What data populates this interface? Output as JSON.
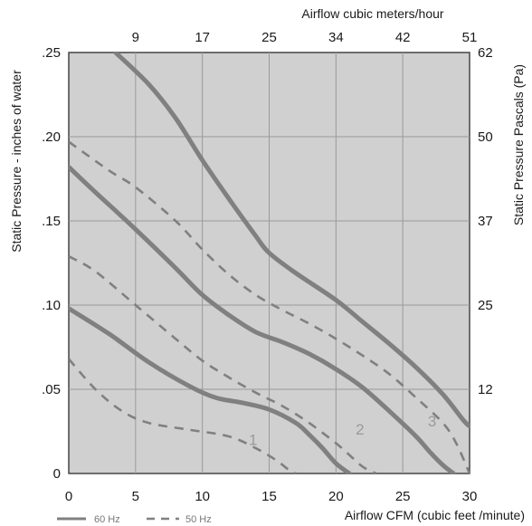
{
  "chart_data": {
    "type": "line",
    "x_bottom": {
      "label": "Airflow  CFM (cubic feet /minute)",
      "range": [
        0,
        30
      ],
      "ticks": [
        {
          "value": 0,
          "label": "0"
        },
        {
          "value": 5,
          "label": "5"
        },
        {
          "value": 10,
          "label": "10"
        },
        {
          "value": 15,
          "label": "15"
        },
        {
          "value": 20,
          "label": "20"
        },
        {
          "value": 25,
          "label": "25"
        },
        {
          "value": 30,
          "label": "30"
        }
      ]
    },
    "x_top": {
      "label": "Airflow cubic meters/hour",
      "ticks": [
        {
          "value": 5,
          "label": "9"
        },
        {
          "value": 10,
          "label": "17"
        },
        {
          "value": 15,
          "label": "25"
        },
        {
          "value": 20,
          "label": "34"
        },
        {
          "value": 25,
          "label": "42"
        },
        {
          "value": 30,
          "label": "51"
        }
      ]
    },
    "y_left": {
      "label": "Static Pressure - inches of water",
      "range": [
        0,
        0.25
      ],
      "ticks": [
        {
          "value": 0,
          "label": "0"
        },
        {
          "value": 0.05,
          "label": ".05"
        },
        {
          "value": 0.1,
          "label": ".10"
        },
        {
          "value": 0.15,
          "label": ".15"
        },
        {
          "value": 0.2,
          "label": ".20"
        },
        {
          "value": 0.25,
          "label": ".25"
        }
      ]
    },
    "y_right": {
      "label": "Static Pressure Pascals (Pa)",
      "ticks": [
        {
          "value": 0.05,
          "label": "12"
        },
        {
          "value": 0.1,
          "label": "25"
        },
        {
          "value": 0.15,
          "label": "37"
        },
        {
          "value": 0.2,
          "label": "50"
        },
        {
          "value": 0.25,
          "label": "62"
        }
      ]
    },
    "grid": true,
    "legend": {
      "placement": "bottom-left",
      "entries": [
        {
          "label": "60 Hz",
          "style": "solid"
        },
        {
          "label": "50 Hz",
          "style": "dashed"
        }
      ]
    },
    "colors": {
      "plot_background": "#d0d0d0",
      "curve": "#808080",
      "grid": "#9a9a9a"
    },
    "series": [
      {
        "curve": "1",
        "hz": "60",
        "style": "solid",
        "x": [
          0,
          3,
          6,
          9,
          11,
          13,
          15,
          17,
          18,
          19,
          20,
          21
        ],
        "y": [
          0.098,
          0.083,
          0.066,
          0.052,
          0.045,
          0.042,
          0.038,
          0.03,
          0.023,
          0.015,
          0.006,
          0
        ]
      },
      {
        "curve": "1",
        "hz": "50",
        "style": "dashed",
        "x": [
          0,
          2,
          4,
          6,
          9,
          12,
          14,
          15.5,
          16.5,
          17
        ],
        "y": [
          0.068,
          0.05,
          0.037,
          0.03,
          0.026,
          0.022,
          0.015,
          0.008,
          0.002,
          0
        ]
      },
      {
        "curve": "2",
        "hz": "60",
        "style": "solid",
        "x": [
          0,
          2,
          5,
          8,
          10,
          12,
          14,
          16,
          18,
          20,
          22,
          24,
          26,
          27,
          28,
          28.8
        ],
        "y": [
          0.182,
          0.167,
          0.145,
          0.122,
          0.106,
          0.094,
          0.084,
          0.078,
          0.071,
          0.062,
          0.051,
          0.037,
          0.022,
          0.013,
          0.005,
          0
        ]
      },
      {
        "curve": "2",
        "hz": "50",
        "style": "dashed",
        "x": [
          0,
          2,
          5,
          8,
          10,
          12,
          14,
          16,
          18,
          20,
          21,
          22,
          23
        ],
        "y": [
          0.129,
          0.12,
          0.1,
          0.08,
          0.067,
          0.057,
          0.048,
          0.04,
          0.03,
          0.018,
          0.011,
          0.004,
          0
        ]
      },
      {
        "curve": "3",
        "hz": "60",
        "style": "solid",
        "x": [
          3.5,
          6,
          8,
          10,
          12,
          14,
          15,
          17,
          20,
          22,
          24,
          26,
          28,
          29.5,
          30
        ],
        "y": [
          0.25,
          0.231,
          0.211,
          0.186,
          0.163,
          0.141,
          0.131,
          0.119,
          0.103,
          0.09,
          0.077,
          0.063,
          0.047,
          0.032,
          0.028
        ]
      },
      {
        "curve": "3",
        "hz": "50",
        "style": "dashed",
        "x": [
          0,
          3,
          5,
          8,
          10,
          12,
          14,
          16,
          18,
          20,
          22,
          24,
          26,
          28,
          29,
          30
        ],
        "y": [
          0.197,
          0.18,
          0.17,
          0.15,
          0.133,
          0.118,
          0.106,
          0.097,
          0.089,
          0.08,
          0.07,
          0.059,
          0.045,
          0.03,
          0.018,
          0
        ]
      }
    ],
    "curve_labels": [
      {
        "text": "1",
        "x": 13.8,
        "y": 0.017
      },
      {
        "text": "2",
        "x": 21.8,
        "y": 0.023
      },
      {
        "text": "3",
        "x": 27.2,
        "y": 0.028
      }
    ]
  }
}
